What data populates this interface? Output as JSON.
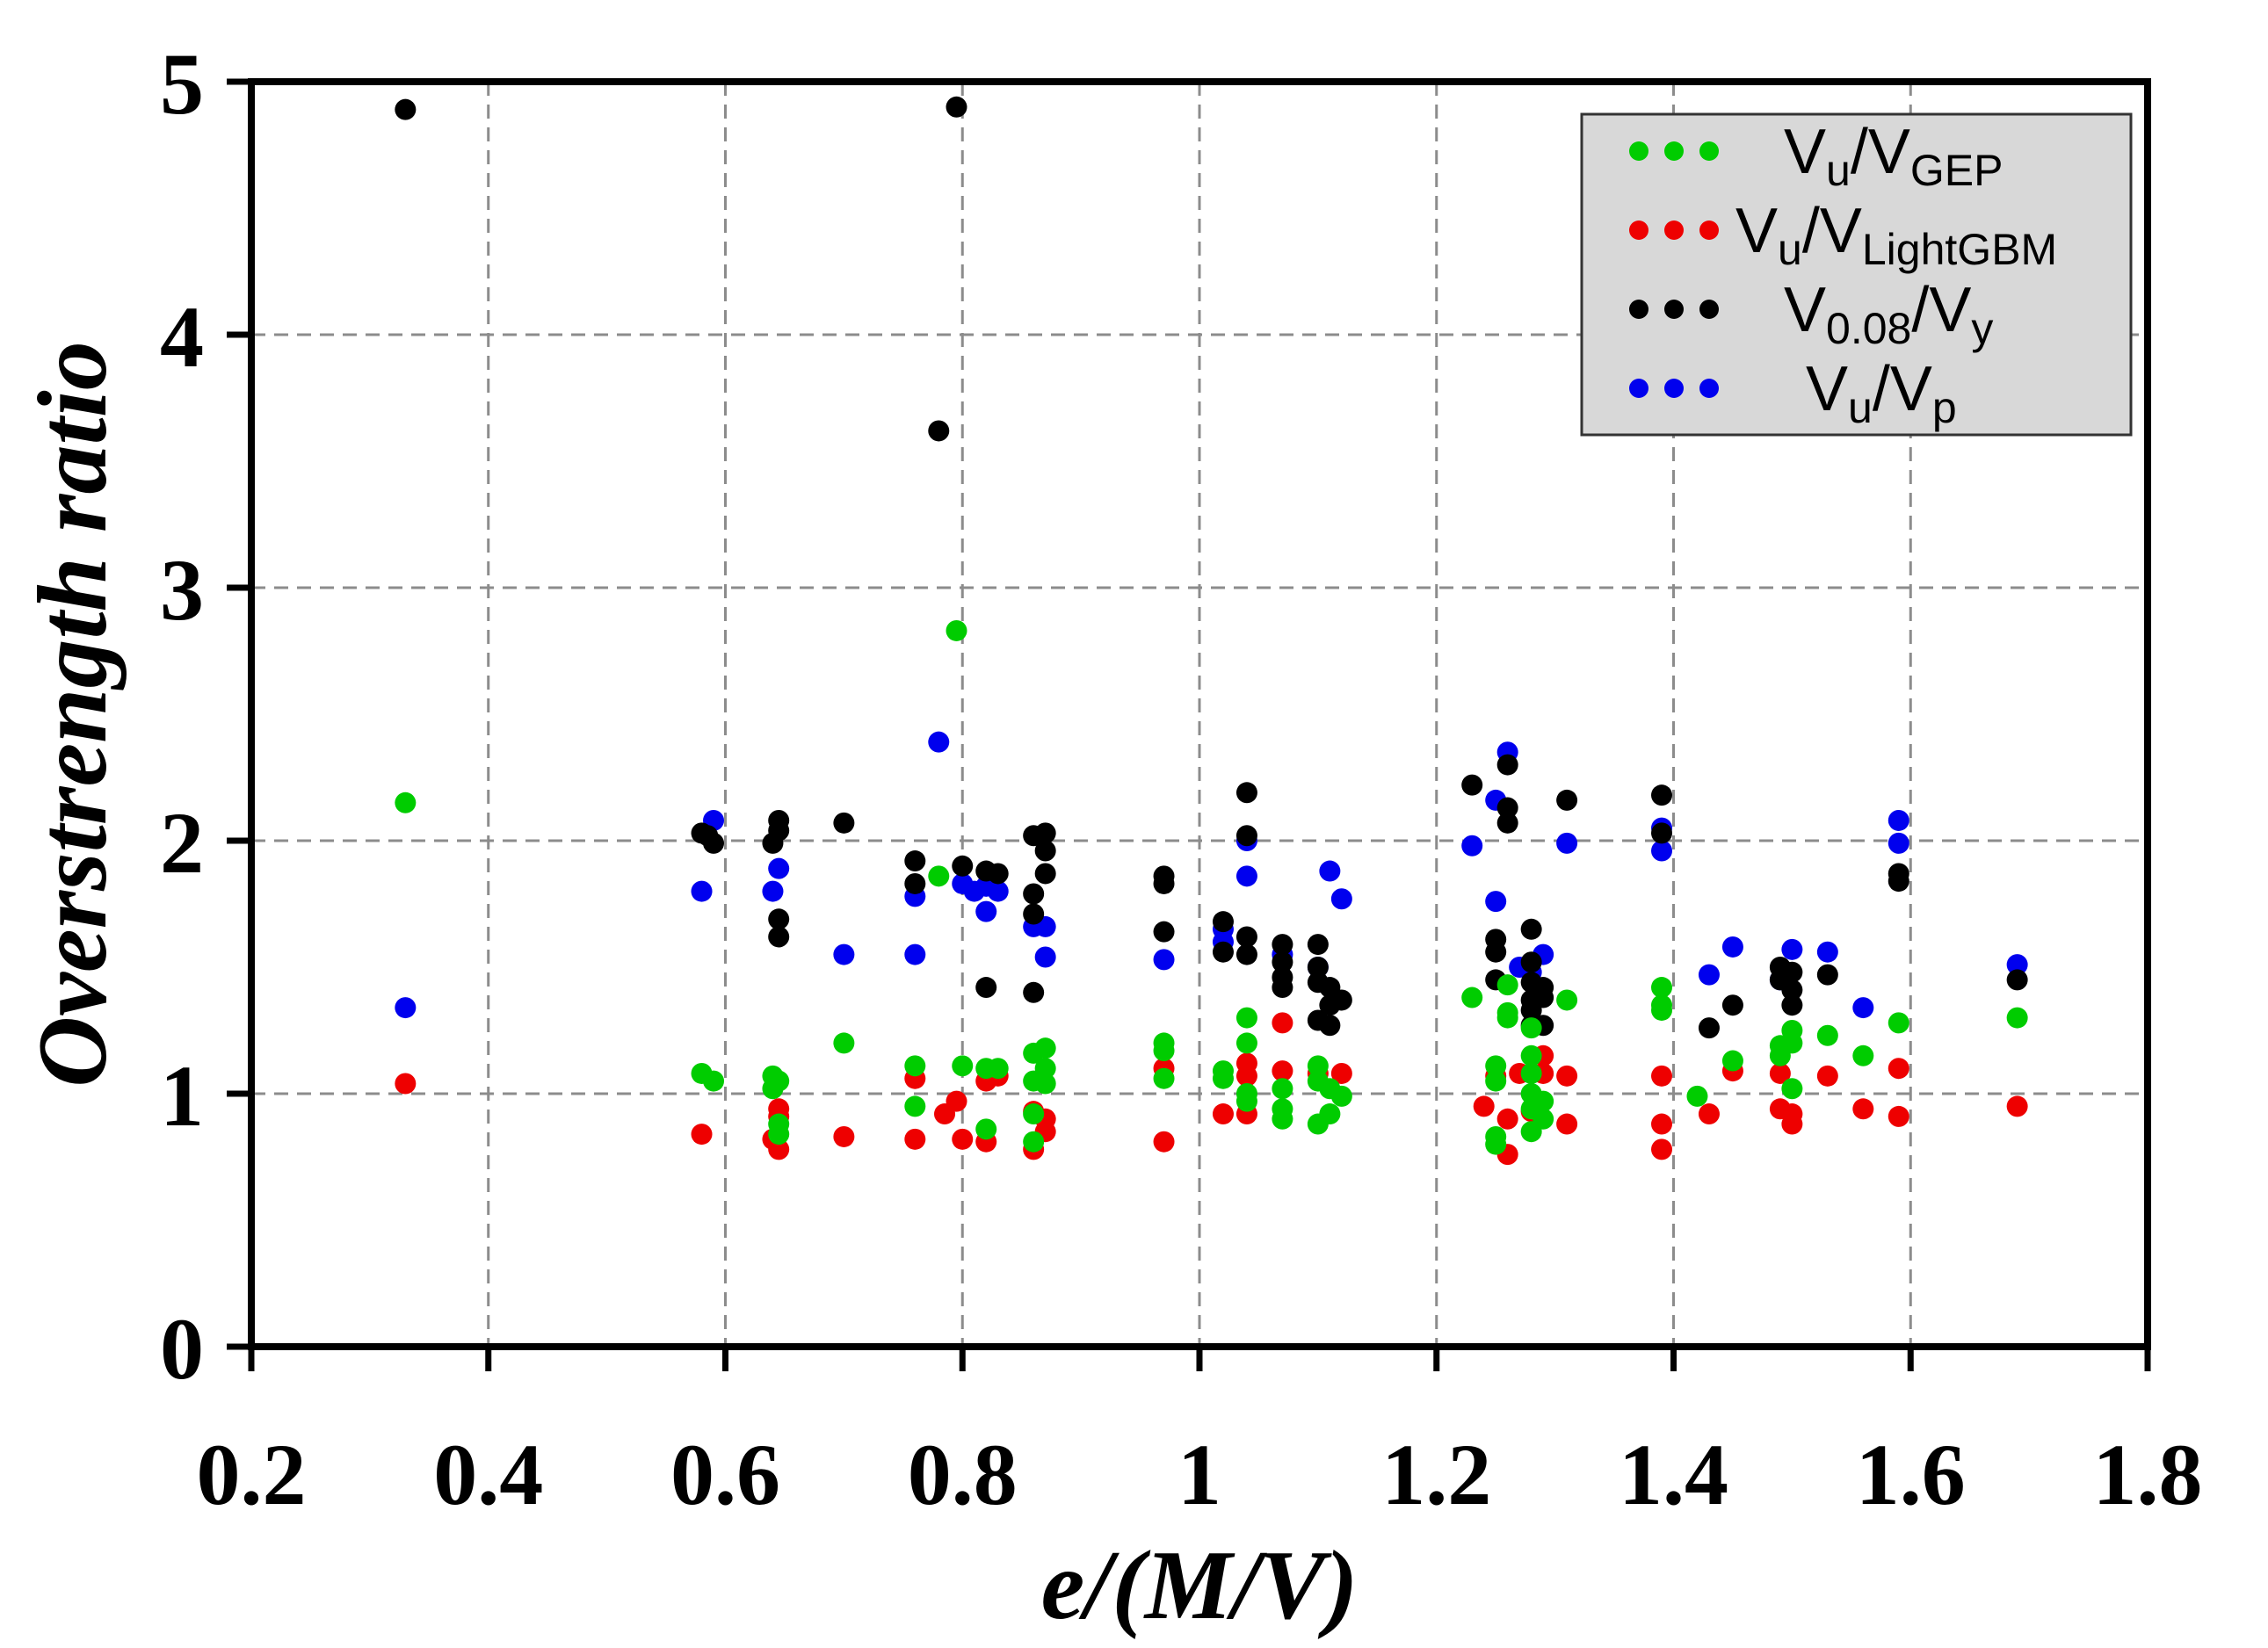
{
  "chart_data": {
    "type": "scatter",
    "title": "",
    "xlabel": "e/(M/V)",
    "ylabel": "Overstrength ratio",
    "xlim": [
      0.2,
      1.8
    ],
    "ylim": [
      0,
      5
    ],
    "grid": true,
    "legend_position": "top-right",
    "x_ticks": [
      {
        "value": 0.2,
        "label": "0.2"
      },
      {
        "value": 0.4,
        "label": "0.4"
      },
      {
        "value": 0.6,
        "label": "0.6"
      },
      {
        "value": 0.8,
        "label": "0.8"
      },
      {
        "value": 1.0,
        "label": "1"
      },
      {
        "value": 1.2,
        "label": "1.2"
      },
      {
        "value": 1.4,
        "label": "1.4"
      },
      {
        "value": 1.6,
        "label": "1.6"
      },
      {
        "value": 1.8,
        "label": "1.8"
      }
    ],
    "y_ticks": [
      {
        "value": 0,
        "label": "0"
      },
      {
        "value": 1,
        "label": "1"
      },
      {
        "value": 2,
        "label": "2"
      },
      {
        "value": 3,
        "label": "3"
      },
      {
        "value": 4,
        "label": "4"
      },
      {
        "value": 5,
        "label": "5"
      }
    ],
    "series": [
      {
        "name": "Vu/VGEP",
        "label_main": "V",
        "label_sub1": "u",
        "label_mid": "/V",
        "label_sub2": "GEP",
        "color": "#00cc00",
        "points": [
          [
            0.33,
            2.15
          ],
          [
            0.58,
            1.08
          ],
          [
            0.59,
            1.05
          ],
          [
            0.64,
            1.07
          ],
          [
            0.64,
            1.02
          ],
          [
            0.645,
            1.05
          ],
          [
            0.645,
            0.88
          ],
          [
            0.645,
            0.84
          ],
          [
            0.7,
            1.2
          ],
          [
            0.76,
            1.11
          ],
          [
            0.76,
            0.95
          ],
          [
            0.78,
            1.86
          ],
          [
            0.795,
            2.83
          ],
          [
            0.8,
            1.11
          ],
          [
            0.82,
            1.1
          ],
          [
            0.82,
            0.86
          ],
          [
            0.83,
            1.1
          ],
          [
            0.86,
            1.16
          ],
          [
            0.86,
            1.05
          ],
          [
            0.86,
            0.92
          ],
          [
            0.86,
            0.81
          ],
          [
            0.87,
            1.18
          ],
          [
            0.87,
            1.1
          ],
          [
            0.87,
            1.04
          ],
          [
            0.97,
            1.2
          ],
          [
            0.97,
            1.17
          ],
          [
            0.97,
            1.06
          ],
          [
            1.02,
            1.09
          ],
          [
            1.02,
            1.06
          ],
          [
            1.04,
            1.3
          ],
          [
            1.04,
            1.2
          ],
          [
            1.04,
            1.0
          ],
          [
            1.04,
            0.97
          ],
          [
            1.07,
            1.02
          ],
          [
            1.07,
            0.94
          ],
          [
            1.07,
            0.9
          ],
          [
            1.1,
            1.11
          ],
          [
            1.1,
            1.05
          ],
          [
            1.1,
            0.88
          ],
          [
            1.11,
            1.02
          ],
          [
            1.11,
            0.92
          ],
          [
            1.12,
            0.99
          ],
          [
            1.23,
            1.38
          ],
          [
            1.25,
            1.11
          ],
          [
            1.25,
            1.05
          ],
          [
            1.25,
            0.83
          ],
          [
            1.25,
            0.8
          ],
          [
            1.26,
            1.43
          ],
          [
            1.26,
            1.32
          ],
          [
            1.26,
            1.3
          ],
          [
            1.28,
            1.26
          ],
          [
            1.28,
            1.15
          ],
          [
            1.28,
            1.08
          ],
          [
            1.28,
            1.0
          ],
          [
            1.28,
            0.94
          ],
          [
            1.28,
            0.85
          ],
          [
            1.29,
            0.97
          ],
          [
            1.29,
            0.9
          ],
          [
            1.31,
            1.37
          ],
          [
            1.39,
            1.42
          ],
          [
            1.39,
            1.35
          ],
          [
            1.39,
            1.33
          ],
          [
            1.42,
            0.99
          ],
          [
            1.45,
            1.13
          ],
          [
            1.49,
            1.19
          ],
          [
            1.49,
            1.15
          ],
          [
            1.5,
            1.25
          ],
          [
            1.5,
            1.2
          ],
          [
            1.5,
            1.02
          ],
          [
            1.53,
            1.23
          ],
          [
            1.56,
            1.15
          ],
          [
            1.59,
            1.28
          ],
          [
            1.69,
            1.3
          ]
        ]
      },
      {
        "name": "Vu/VLightGBM",
        "label_main": "V",
        "label_sub1": "u",
        "label_mid": "/V",
        "label_sub2": "LightGBM",
        "color": "#ee0000",
        "points": [
          [
            0.33,
            1.04
          ],
          [
            0.58,
            0.84
          ],
          [
            0.64,
            0.82
          ],
          [
            0.645,
            0.94
          ],
          [
            0.645,
            0.91
          ],
          [
            0.645,
            0.78
          ],
          [
            0.7,
            0.83
          ],
          [
            0.76,
            1.06
          ],
          [
            0.76,
            0.82
          ],
          [
            0.785,
            0.92
          ],
          [
            0.795,
            0.97
          ],
          [
            0.8,
            0.82
          ],
          [
            0.82,
            1.05
          ],
          [
            0.82,
            0.81
          ],
          [
            0.83,
            1.07
          ],
          [
            0.86,
            0.93
          ],
          [
            0.86,
            0.78
          ],
          [
            0.87,
            0.9
          ],
          [
            0.87,
            0.85
          ],
          [
            0.97,
            1.1
          ],
          [
            0.97,
            0.81
          ],
          [
            1.02,
            0.92
          ],
          [
            1.04,
            1.12
          ],
          [
            1.04,
            1.07
          ],
          [
            1.04,
            0.92
          ],
          [
            1.07,
            1.28
          ],
          [
            1.07,
            1.09
          ],
          [
            1.1,
            1.08
          ],
          [
            1.12,
            1.08
          ],
          [
            1.24,
            0.95
          ],
          [
            1.25,
            1.07
          ],
          [
            1.26,
            0.9
          ],
          [
            1.26,
            0.76
          ],
          [
            1.27,
            1.08
          ],
          [
            1.28,
            0.93
          ],
          [
            1.29,
            1.15
          ],
          [
            1.29,
            1.08
          ],
          [
            1.31,
            1.07
          ],
          [
            1.31,
            0.88
          ],
          [
            1.39,
            1.07
          ],
          [
            1.39,
            0.88
          ],
          [
            1.39,
            0.78
          ],
          [
            1.43,
            0.92
          ],
          [
            1.45,
            1.09
          ],
          [
            1.49,
            1.08
          ],
          [
            1.49,
            0.94
          ],
          [
            1.5,
            0.92
          ],
          [
            1.5,
            0.88
          ],
          [
            1.53,
            1.07
          ],
          [
            1.56,
            0.94
          ],
          [
            1.59,
            1.1
          ],
          [
            1.59,
            0.91
          ],
          [
            1.69,
            0.95
          ]
        ]
      },
      {
        "name": "V0.08/Vy",
        "label_main": "V",
        "label_sub1": "0.08",
        "label_mid": "/V",
        "label_sub2": "y",
        "color": "#000000",
        "points": [
          [
            0.33,
            4.89
          ],
          [
            0.58,
            2.03
          ],
          [
            0.585,
            2.02
          ],
          [
            0.59,
            1.99
          ],
          [
            0.64,
            1.99
          ],
          [
            0.645,
            2.08
          ],
          [
            0.645,
            2.04
          ],
          [
            0.645,
            1.69
          ],
          [
            0.645,
            1.62
          ],
          [
            0.7,
            2.07
          ],
          [
            0.76,
            1.92
          ],
          [
            0.76,
            1.83
          ],
          [
            0.78,
            3.62
          ],
          [
            0.795,
            4.9
          ],
          [
            0.8,
            1.9
          ],
          [
            0.82,
            1.88
          ],
          [
            0.82,
            1.42
          ],
          [
            0.83,
            1.87
          ],
          [
            0.86,
            2.02
          ],
          [
            0.86,
            1.79
          ],
          [
            0.86,
            1.71
          ],
          [
            0.86,
            1.4
          ],
          [
            0.87,
            2.03
          ],
          [
            0.87,
            1.96
          ],
          [
            0.87,
            1.87
          ],
          [
            0.97,
            1.86
          ],
          [
            0.97,
            1.83
          ],
          [
            0.97,
            1.64
          ],
          [
            1.02,
            1.68
          ],
          [
            1.02,
            1.56
          ],
          [
            1.04,
            2.19
          ],
          [
            1.04,
            2.02
          ],
          [
            1.04,
            1.62
          ],
          [
            1.04,
            1.55
          ],
          [
            1.07,
            1.59
          ],
          [
            1.07,
            1.52
          ],
          [
            1.07,
            1.46
          ],
          [
            1.07,
            1.42
          ],
          [
            1.1,
            1.59
          ],
          [
            1.1,
            1.5
          ],
          [
            1.1,
            1.44
          ],
          [
            1.1,
            1.29
          ],
          [
            1.11,
            1.42
          ],
          [
            1.11,
            1.35
          ],
          [
            1.11,
            1.27
          ],
          [
            1.12,
            1.37
          ],
          [
            1.23,
            2.22
          ],
          [
            1.25,
            1.61
          ],
          [
            1.25,
            1.56
          ],
          [
            1.25,
            1.45
          ],
          [
            1.26,
            2.3
          ],
          [
            1.26,
            2.13
          ],
          [
            1.26,
            2.07
          ],
          [
            1.28,
            1.65
          ],
          [
            1.28,
            1.52
          ],
          [
            1.28,
            1.44
          ],
          [
            1.28,
            1.37
          ],
          [
            1.28,
            1.33
          ],
          [
            1.28,
            1.27
          ],
          [
            1.29,
            1.42
          ],
          [
            1.29,
            1.38
          ],
          [
            1.29,
            1.27
          ],
          [
            1.31,
            2.16
          ],
          [
            1.39,
            2.18
          ],
          [
            1.39,
            2.03
          ],
          [
            1.43,
            1.26
          ],
          [
            1.45,
            1.35
          ],
          [
            1.49,
            1.5
          ],
          [
            1.49,
            1.45
          ],
          [
            1.5,
            1.48
          ],
          [
            1.5,
            1.41
          ],
          [
            1.5,
            1.35
          ],
          [
            1.53,
            1.47
          ],
          [
            1.59,
            1.87
          ],
          [
            1.59,
            1.84
          ],
          [
            1.69,
            1.45
          ]
        ]
      },
      {
        "name": "Vu/Vp",
        "label_main": "V",
        "label_sub1": "u",
        "label_mid": "/V",
        "label_sub2": "p",
        "color": "#0000ee",
        "points": [
          [
            0.33,
            1.34
          ],
          [
            0.58,
            1.8
          ],
          [
            0.59,
            2.08
          ],
          [
            0.64,
            1.8
          ],
          [
            0.645,
            1.89
          ],
          [
            0.7,
            1.55
          ],
          [
            0.76,
            1.55
          ],
          [
            0.76,
            1.78
          ],
          [
            0.78,
            2.39
          ],
          [
            0.8,
            1.83
          ],
          [
            0.81,
            1.8
          ],
          [
            0.82,
            1.72
          ],
          [
            0.82,
            1.82
          ],
          [
            0.83,
            1.8
          ],
          [
            0.86,
            1.66
          ],
          [
            0.87,
            1.66
          ],
          [
            0.87,
            1.54
          ],
          [
            0.97,
            1.53
          ],
          [
            1.02,
            1.65
          ],
          [
            1.02,
            1.6
          ],
          [
            1.04,
            2.0
          ],
          [
            1.04,
            1.86
          ],
          [
            1.07,
            1.55
          ],
          [
            1.1,
            1.5
          ],
          [
            1.11,
            1.88
          ],
          [
            1.12,
            1.77
          ],
          [
            1.23,
            1.98
          ],
          [
            1.25,
            2.16
          ],
          [
            1.25,
            1.76
          ],
          [
            1.26,
            2.35
          ],
          [
            1.27,
            1.5
          ],
          [
            1.28,
            1.48
          ],
          [
            1.29,
            1.55
          ],
          [
            1.31,
            1.99
          ],
          [
            1.39,
            2.05
          ],
          [
            1.39,
            1.96
          ],
          [
            1.43,
            1.47
          ],
          [
            1.45,
            1.58
          ],
          [
            1.49,
            1.45
          ],
          [
            1.5,
            1.57
          ],
          [
            1.53,
            1.56
          ],
          [
            1.56,
            1.34
          ],
          [
            1.59,
            2.08
          ],
          [
            1.59,
            1.99
          ],
          [
            1.69,
            1.51
          ]
        ]
      }
    ]
  }
}
